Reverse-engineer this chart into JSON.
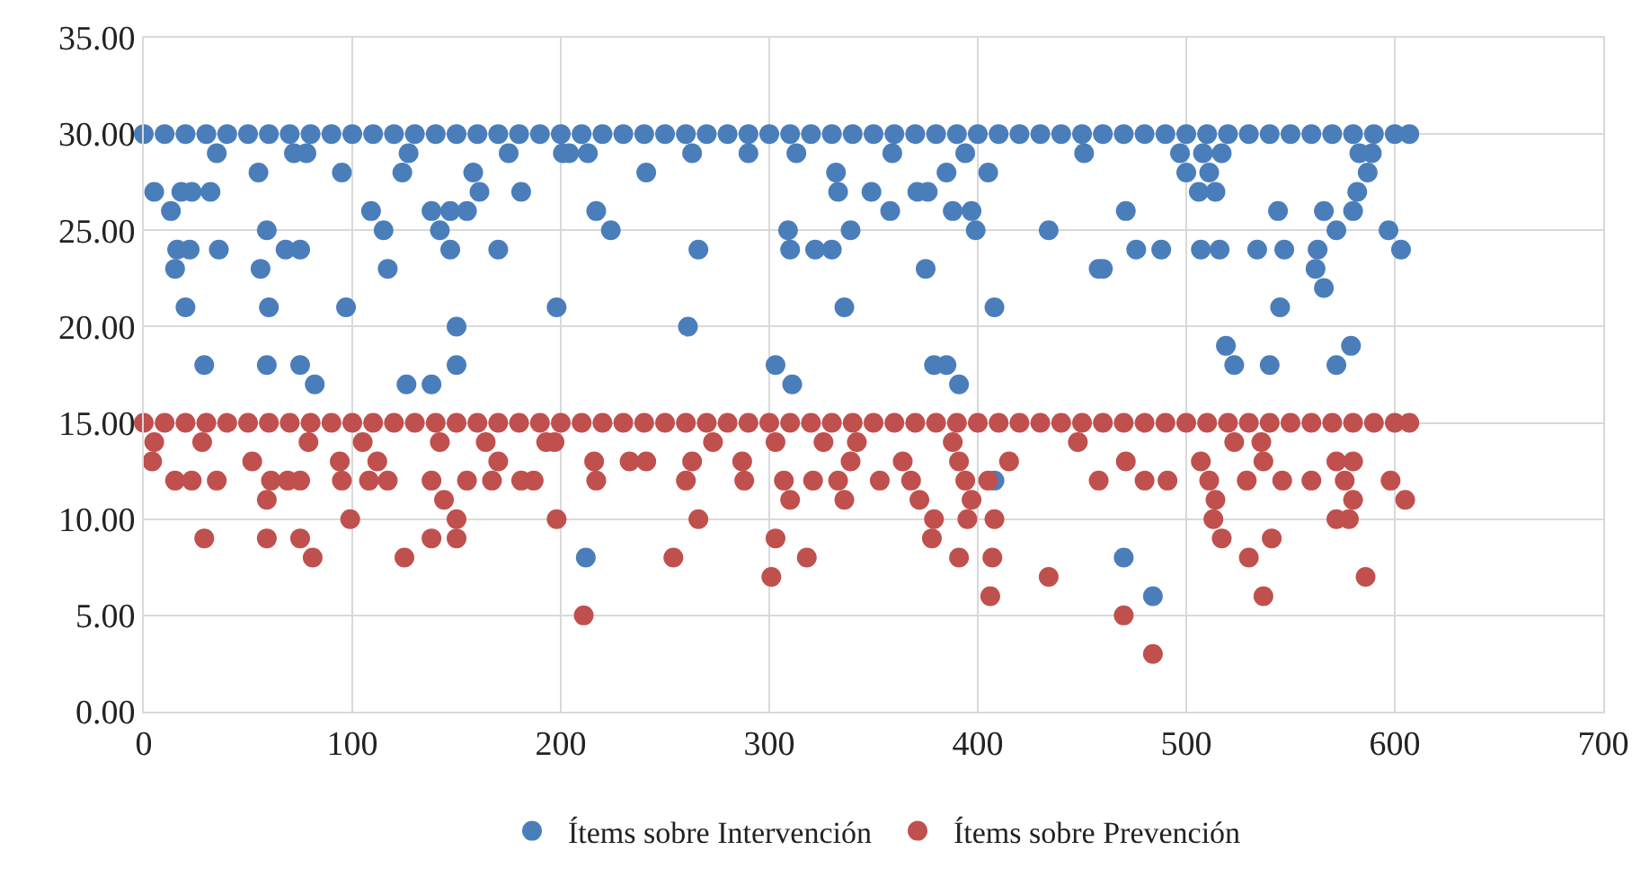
{
  "chart_data": {
    "type": "scatter",
    "xlim": [
      0,
      700
    ],
    "ylim": [
      0,
      35
    ],
    "xticks": [
      0,
      100,
      200,
      300,
      400,
      500,
      600,
      700
    ],
    "yticks": [
      {
        "value": 0,
        "label": "0.00"
      },
      {
        "value": 5,
        "label": "5.00"
      },
      {
        "value": 10,
        "label": "10.00"
      },
      {
        "value": 15,
        "label": "15.00"
      },
      {
        "value": 20,
        "label": "20.00"
      },
      {
        "value": 25,
        "label": "25.00"
      },
      {
        "value": 30,
        "label": "30.00"
      },
      {
        "value": 35,
        "label": "35.00"
      }
    ],
    "grid": true,
    "legend": "bottom",
    "marker": "circle",
    "series": [
      {
        "name": "Ítems sobre Intervención",
        "color": "#4a7ebb",
        "x": [
          0,
          10,
          20,
          30,
          40,
          50,
          60,
          70,
          80,
          90,
          100,
          110,
          120,
          130,
          140,
          150,
          160,
          170,
          180,
          190,
          200,
          210,
          220,
          230,
          240,
          250,
          260,
          270,
          280,
          290,
          300,
          310,
          320,
          330,
          340,
          350,
          360,
          370,
          380,
          390,
          400,
          410,
          420,
          430,
          440,
          450,
          460,
          470,
          480,
          490,
          500,
          510,
          520,
          530,
          540,
          550,
          560,
          570,
          580,
          590,
          600,
          607,
          35,
          72,
          78,
          127,
          175,
          201,
          204,
          213,
          263,
          290,
          313,
          359,
          394,
          451,
          497,
          508,
          517,
          583,
          589,
          55,
          95,
          124,
          158,
          241,
          332,
          385,
          405,
          500,
          511,
          587,
          5,
          18,
          23,
          32,
          161,
          181,
          333,
          349,
          371,
          376,
          506,
          514,
          582,
          13,
          109,
          138,
          147,
          155,
          217,
          358,
          388,
          397,
          471,
          544,
          566,
          580,
          59,
          115,
          142,
          224,
          309,
          339,
          399,
          434,
          572,
          597,
          16,
          22,
          36,
          68,
          75,
          147,
          170,
          266,
          310,
          322,
          330,
          476,
          488,
          507,
          516,
          534,
          547,
          563,
          603,
          15,
          56,
          117,
          375,
          458,
          460,
          562,
          566,
          20,
          60,
          97,
          198,
          336,
          408,
          545,
          150,
          261,
          519,
          579,
          29,
          59,
          75,
          150,
          303,
          379,
          385,
          523,
          540,
          572,
          82,
          126,
          138,
          311,
          391,
          408,
          212,
          470,
          484
        ],
        "values": [
          30,
          30,
          30,
          30,
          30,
          30,
          30,
          30,
          30,
          30,
          30,
          30,
          30,
          30,
          30,
          30,
          30,
          30,
          30,
          30,
          30,
          30,
          30,
          30,
          30,
          30,
          30,
          30,
          30,
          30,
          30,
          30,
          30,
          30,
          30,
          30,
          30,
          30,
          30,
          30,
          30,
          30,
          30,
          30,
          30,
          30,
          30,
          30,
          30,
          30,
          30,
          30,
          30,
          30,
          30,
          30,
          30,
          30,
          30,
          30,
          30,
          30,
          29,
          29,
          29,
          29,
          29,
          29,
          29,
          29,
          29,
          29,
          29,
          29,
          29,
          29,
          29,
          29,
          29,
          29,
          29,
          28,
          28,
          28,
          28,
          28,
          28,
          28,
          28,
          28,
          28,
          28,
          27,
          27,
          27,
          27,
          27,
          27,
          27,
          27,
          27,
          27,
          27,
          27,
          27,
          26,
          26,
          26,
          26,
          26,
          26,
          26,
          26,
          26,
          26,
          26,
          26,
          26,
          25,
          25,
          25,
          25,
          25,
          25,
          25,
          25,
          25,
          25,
          24,
          24,
          24,
          24,
          24,
          24,
          24,
          24,
          24,
          24,
          24,
          24,
          24,
          24,
          24,
          24,
          24,
          24,
          24,
          23,
          23,
          23,
          23,
          23,
          23,
          23,
          22,
          21,
          21,
          21,
          21,
          21,
          21,
          21,
          20,
          20,
          19,
          19,
          18,
          18,
          18,
          18,
          18,
          18,
          18,
          18,
          18,
          18,
          17,
          17,
          17,
          17,
          17,
          12,
          8,
          8,
          6
        ]
      },
      {
        "name": "Ítems sobre Prevención",
        "color": "#c0504d",
        "x": [
          0,
          10,
          20,
          30,
          40,
          50,
          60,
          70,
          80,
          90,
          100,
          110,
          120,
          130,
          140,
          150,
          160,
          170,
          180,
          190,
          200,
          210,
          220,
          230,
          240,
          250,
          260,
          270,
          280,
          290,
          300,
          310,
          320,
          330,
          340,
          350,
          360,
          370,
          380,
          390,
          400,
          410,
          420,
          430,
          440,
          450,
          460,
          470,
          480,
          490,
          500,
          510,
          520,
          530,
          540,
          550,
          560,
          570,
          580,
          590,
          600,
          607,
          5,
          28,
          79,
          105,
          142,
          164,
          197,
          193,
          273,
          303,
          326,
          342,
          388,
          448,
          523,
          536,
          4,
          52,
          94,
          112,
          170,
          216,
          233,
          241,
          263,
          287,
          339,
          364,
          391,
          415,
          471,
          507,
          537,
          572,
          580,
          15,
          23,
          35,
          61,
          69,
          75,
          95,
          108,
          117,
          138,
          155,
          167,
          181,
          187,
          217,
          260,
          288,
          307,
          321,
          333,
          353,
          368,
          394,
          405,
          458,
          480,
          491,
          511,
          529,
          546,
          560,
          576,
          598,
          59,
          144,
          310,
          336,
          372,
          397,
          514,
          580,
          605,
          99,
          150,
          198,
          266,
          379,
          395,
          408,
          513,
          572,
          578,
          29,
          59,
          75,
          138,
          150,
          303,
          378,
          517,
          541,
          81,
          125,
          254,
          318,
          391,
          407,
          530,
          301,
          434,
          586,
          406,
          537,
          211,
          470,
          484
        ],
        "values": [
          15,
          15,
          15,
          15,
          15,
          15,
          15,
          15,
          15,
          15,
          15,
          15,
          15,
          15,
          15,
          15,
          15,
          15,
          15,
          15,
          15,
          15,
          15,
          15,
          15,
          15,
          15,
          15,
          15,
          15,
          15,
          15,
          15,
          15,
          15,
          15,
          15,
          15,
          15,
          15,
          15,
          15,
          15,
          15,
          15,
          15,
          15,
          15,
          15,
          15,
          15,
          15,
          15,
          15,
          15,
          15,
          15,
          15,
          15,
          15,
          15,
          15,
          14,
          14,
          14,
          14,
          14,
          14,
          14,
          14,
          14,
          14,
          14,
          14,
          14,
          14,
          14,
          14,
          13,
          13,
          13,
          13,
          13,
          13,
          13,
          13,
          13,
          13,
          13,
          13,
          13,
          13,
          13,
          13,
          13,
          13,
          13,
          12,
          12,
          12,
          12,
          12,
          12,
          12,
          12,
          12,
          12,
          12,
          12,
          12,
          12,
          12,
          12,
          12,
          12,
          12,
          12,
          12,
          12,
          12,
          12,
          12,
          12,
          12,
          12,
          12,
          12,
          12,
          12,
          12,
          11,
          11,
          11,
          11,
          11,
          11,
          11,
          11,
          11,
          10,
          10,
          10,
          10,
          10,
          10,
          10,
          10,
          10,
          10,
          9,
          9,
          9,
          9,
          9,
          9,
          9,
          9,
          9,
          8,
          8,
          8,
          8,
          8,
          8,
          8,
          7,
          7,
          7,
          6,
          6,
          5,
          5,
          3
        ]
      }
    ]
  }
}
